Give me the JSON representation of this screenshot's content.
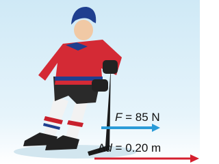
{
  "force_label": {
    "symbol": "F",
    "text": " = 85 N"
  },
  "displacement_label": {
    "symbol": "Δ",
    "variable": "d",
    "text": " = 0.20 m"
  }
}
